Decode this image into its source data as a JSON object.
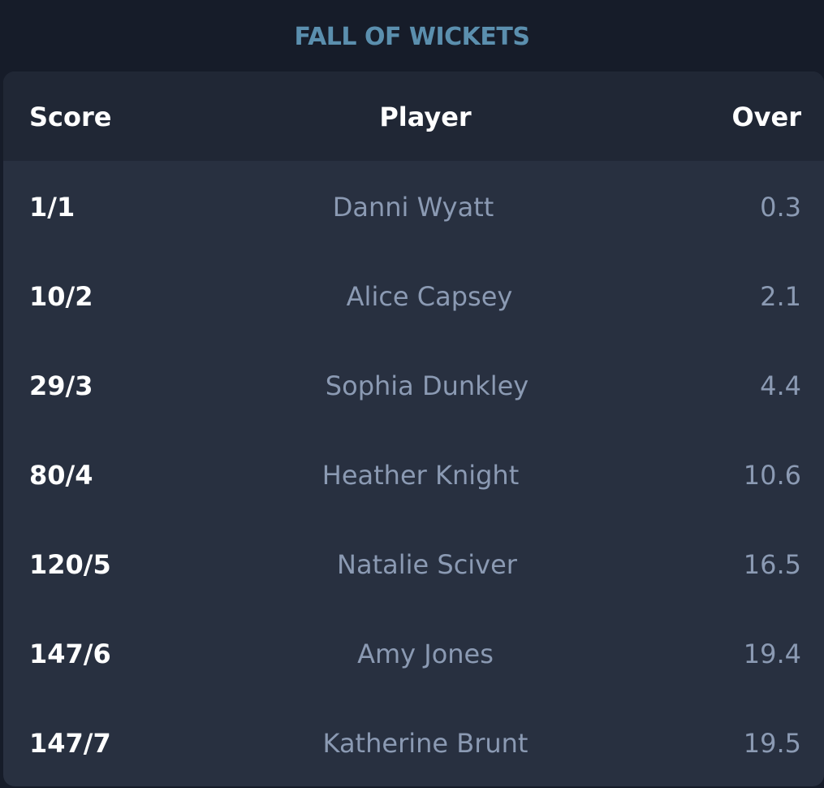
{
  "title": "FALL OF WICKETS",
  "headers": {
    "score": "Score",
    "player": "Player",
    "over": "Over"
  },
  "rows": [
    {
      "score": "1/1",
      "player": "Danni Wyatt",
      "over": "0.3"
    },
    {
      "score": "10/2",
      "player": "Alice Capsey",
      "over": "2.1"
    },
    {
      "score": "29/3",
      "player": "Sophia Dunkley",
      "over": "4.4"
    },
    {
      "score": "80/4",
      "player": "Heather Knight",
      "over": "10.6"
    },
    {
      "score": "120/5",
      "player": "Natalie Sciver",
      "over": "16.5"
    },
    {
      "score": "147/6",
      "player": "Amy Jones",
      "over": "19.4"
    },
    {
      "score": "147/7",
      "player": "Katherine Brunt",
      "over": "19.5"
    }
  ]
}
